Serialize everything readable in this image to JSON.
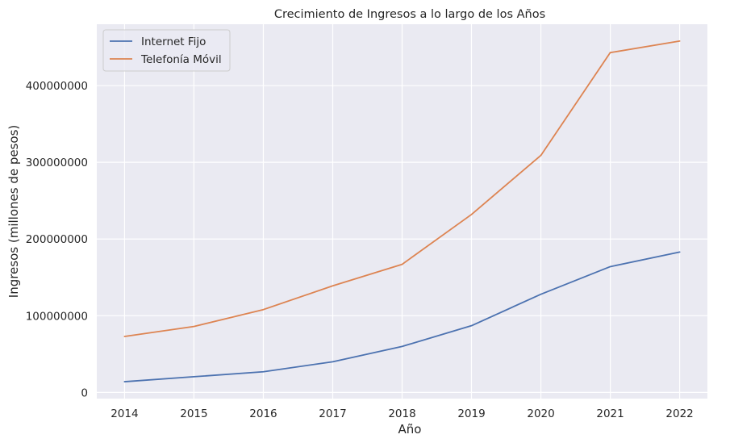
{
  "chart_data": {
    "type": "line",
    "title": "Crecimiento de Ingresos a lo largo de los Años",
    "xlabel": "Año",
    "ylabel": "Ingresos (millones de pesos)",
    "x": [
      2014,
      2015,
      2016,
      2017,
      2018,
      2019,
      2020,
      2021,
      2022
    ],
    "x_tick_labels": [
      "2014",
      "2015",
      "2016",
      "2017",
      "2018",
      "2019",
      "2020",
      "2021",
      "2022"
    ],
    "y_ticks": [
      0,
      100000000,
      200000000,
      300000000,
      400000000
    ],
    "y_tick_labels": [
      "0",
      "100000000",
      "200000000",
      "300000000",
      "400000000"
    ],
    "xlim": [
      2013.6,
      2022.4
    ],
    "ylim": [
      -8000000,
      480000000
    ],
    "grid": true,
    "legend_position": "top-left",
    "series": [
      {
        "name": "Internet Fijo",
        "color": "#4c72b0",
        "values": [
          14000000,
          20500000,
          27000000,
          40000000,
          60000000,
          87000000,
          128000000,
          164000000,
          183000000
        ]
      },
      {
        "name": "Telefonía Móvil",
        "color": "#dd8452",
        "values": [
          73000000,
          86000000,
          108000000,
          139000000,
          167000000,
          232000000,
          309000000,
          443000000,
          458000000
        ]
      }
    ],
    "style": {
      "plot_background": "#eaeaf2",
      "grid_color": "#ffffff"
    }
  }
}
